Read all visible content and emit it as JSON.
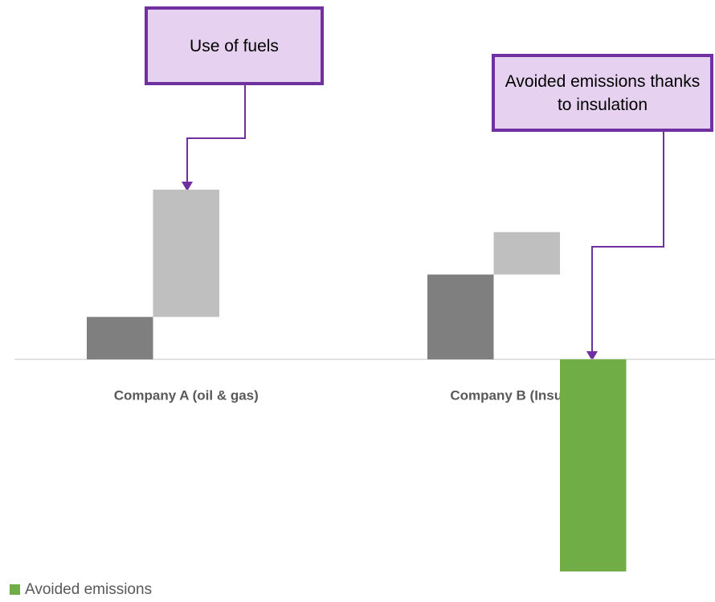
{
  "chart_data": {
    "type": "bar",
    "categories": [
      "Company A (oil & gas)",
      "Company B (Insulation)"
    ],
    "series": [
      {
        "color": "#7f7f7f",
        "values": [
          10,
          20
        ]
      },
      {
        "color": "#bfbfbf",
        "values": [
          30,
          10
        ]
      },
      {
        "name": "Avoided emissions",
        "color": "#70ad47",
        "values": [
          null,
          -50
        ]
      }
    ],
    "ylim": [
      -50,
      40
    ],
    "annotations": [
      "Use of fuels",
      "Avoided emissions thanks to insulation"
    ]
  }
}
